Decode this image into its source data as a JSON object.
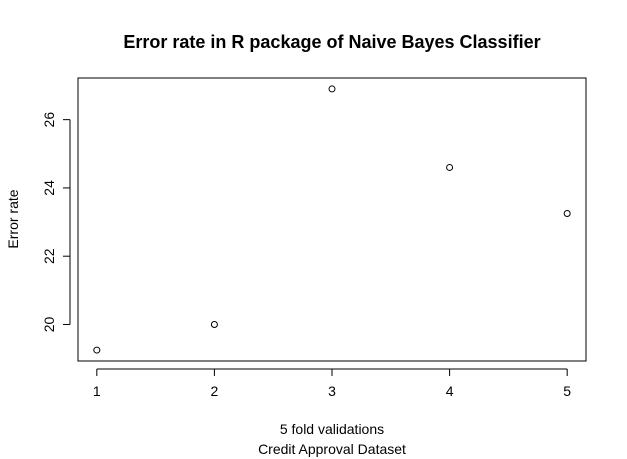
{
  "chart_data": {
    "type": "scatter",
    "title": "Error rate in R package of Naive Bayes Classifier",
    "xlabel": "5 fold validations",
    "xlabel_sub": "Credit Approval Dataset",
    "ylabel": "Error rate",
    "x": [
      1,
      2,
      3,
      4,
      5
    ],
    "y": [
      19.25,
      20.0,
      26.9,
      24.6,
      23.25
    ],
    "xlim": [
      0.84,
      5.16
    ],
    "ylim": [
      18.93,
      27.22
    ],
    "xticks": [
      1,
      2,
      3,
      4,
      5
    ],
    "yticks": [
      20,
      22,
      24,
      26
    ],
    "grid": false,
    "marker": "open-circle"
  }
}
